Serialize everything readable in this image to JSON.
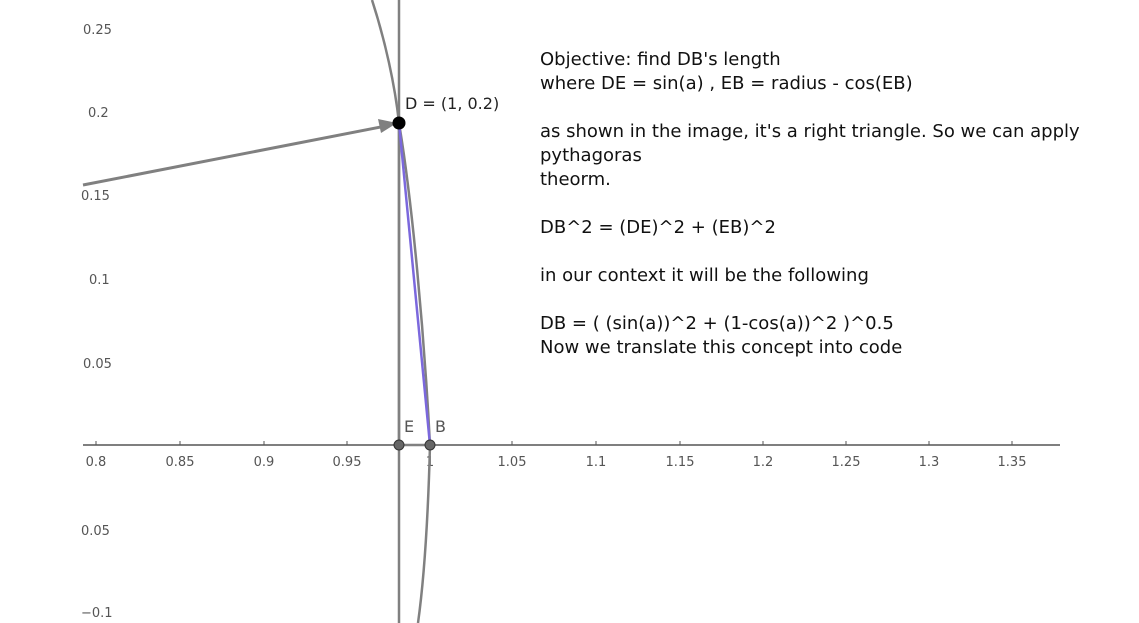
{
  "graph": {
    "x_ticks": [
      "0.8",
      "0.85",
      "0.9",
      "0.95",
      "1",
      "1.05",
      "1.1",
      "1.15",
      "1.2",
      "1.25",
      "1.3",
      "1.35"
    ],
    "y_ticks_positive": [
      "0.25",
      "0.2",
      "0.15",
      "0.1",
      "0.05"
    ],
    "y_ticks_negative": [
      "0.05",
      "−0.1"
    ],
    "point_D_label": "D = (1, 0.2)",
    "point_E_label": "E",
    "point_B_label": "B",
    "colors": {
      "axis": "#555555",
      "curve": "#808080",
      "segment_DB": "#7b68dd",
      "point": "#000000"
    }
  },
  "explanation": {
    "line1": "Objective: find DB's length",
    "line2": "where DE = sin(a) , EB = radius - cos(EB)",
    "line3": "as shown in the image, it's a right triangle. So we can apply pythagoras",
    "line4": "theorm.",
    "line5": "DB^2 = (DE)^2 + (EB)^2",
    "line6": "in our context it will be the following",
    "line7": "DB = ( (sin(a))^2 + (1-cos(a))^2 )^0.5",
    "line8": "Now we translate this concept into code"
  }
}
